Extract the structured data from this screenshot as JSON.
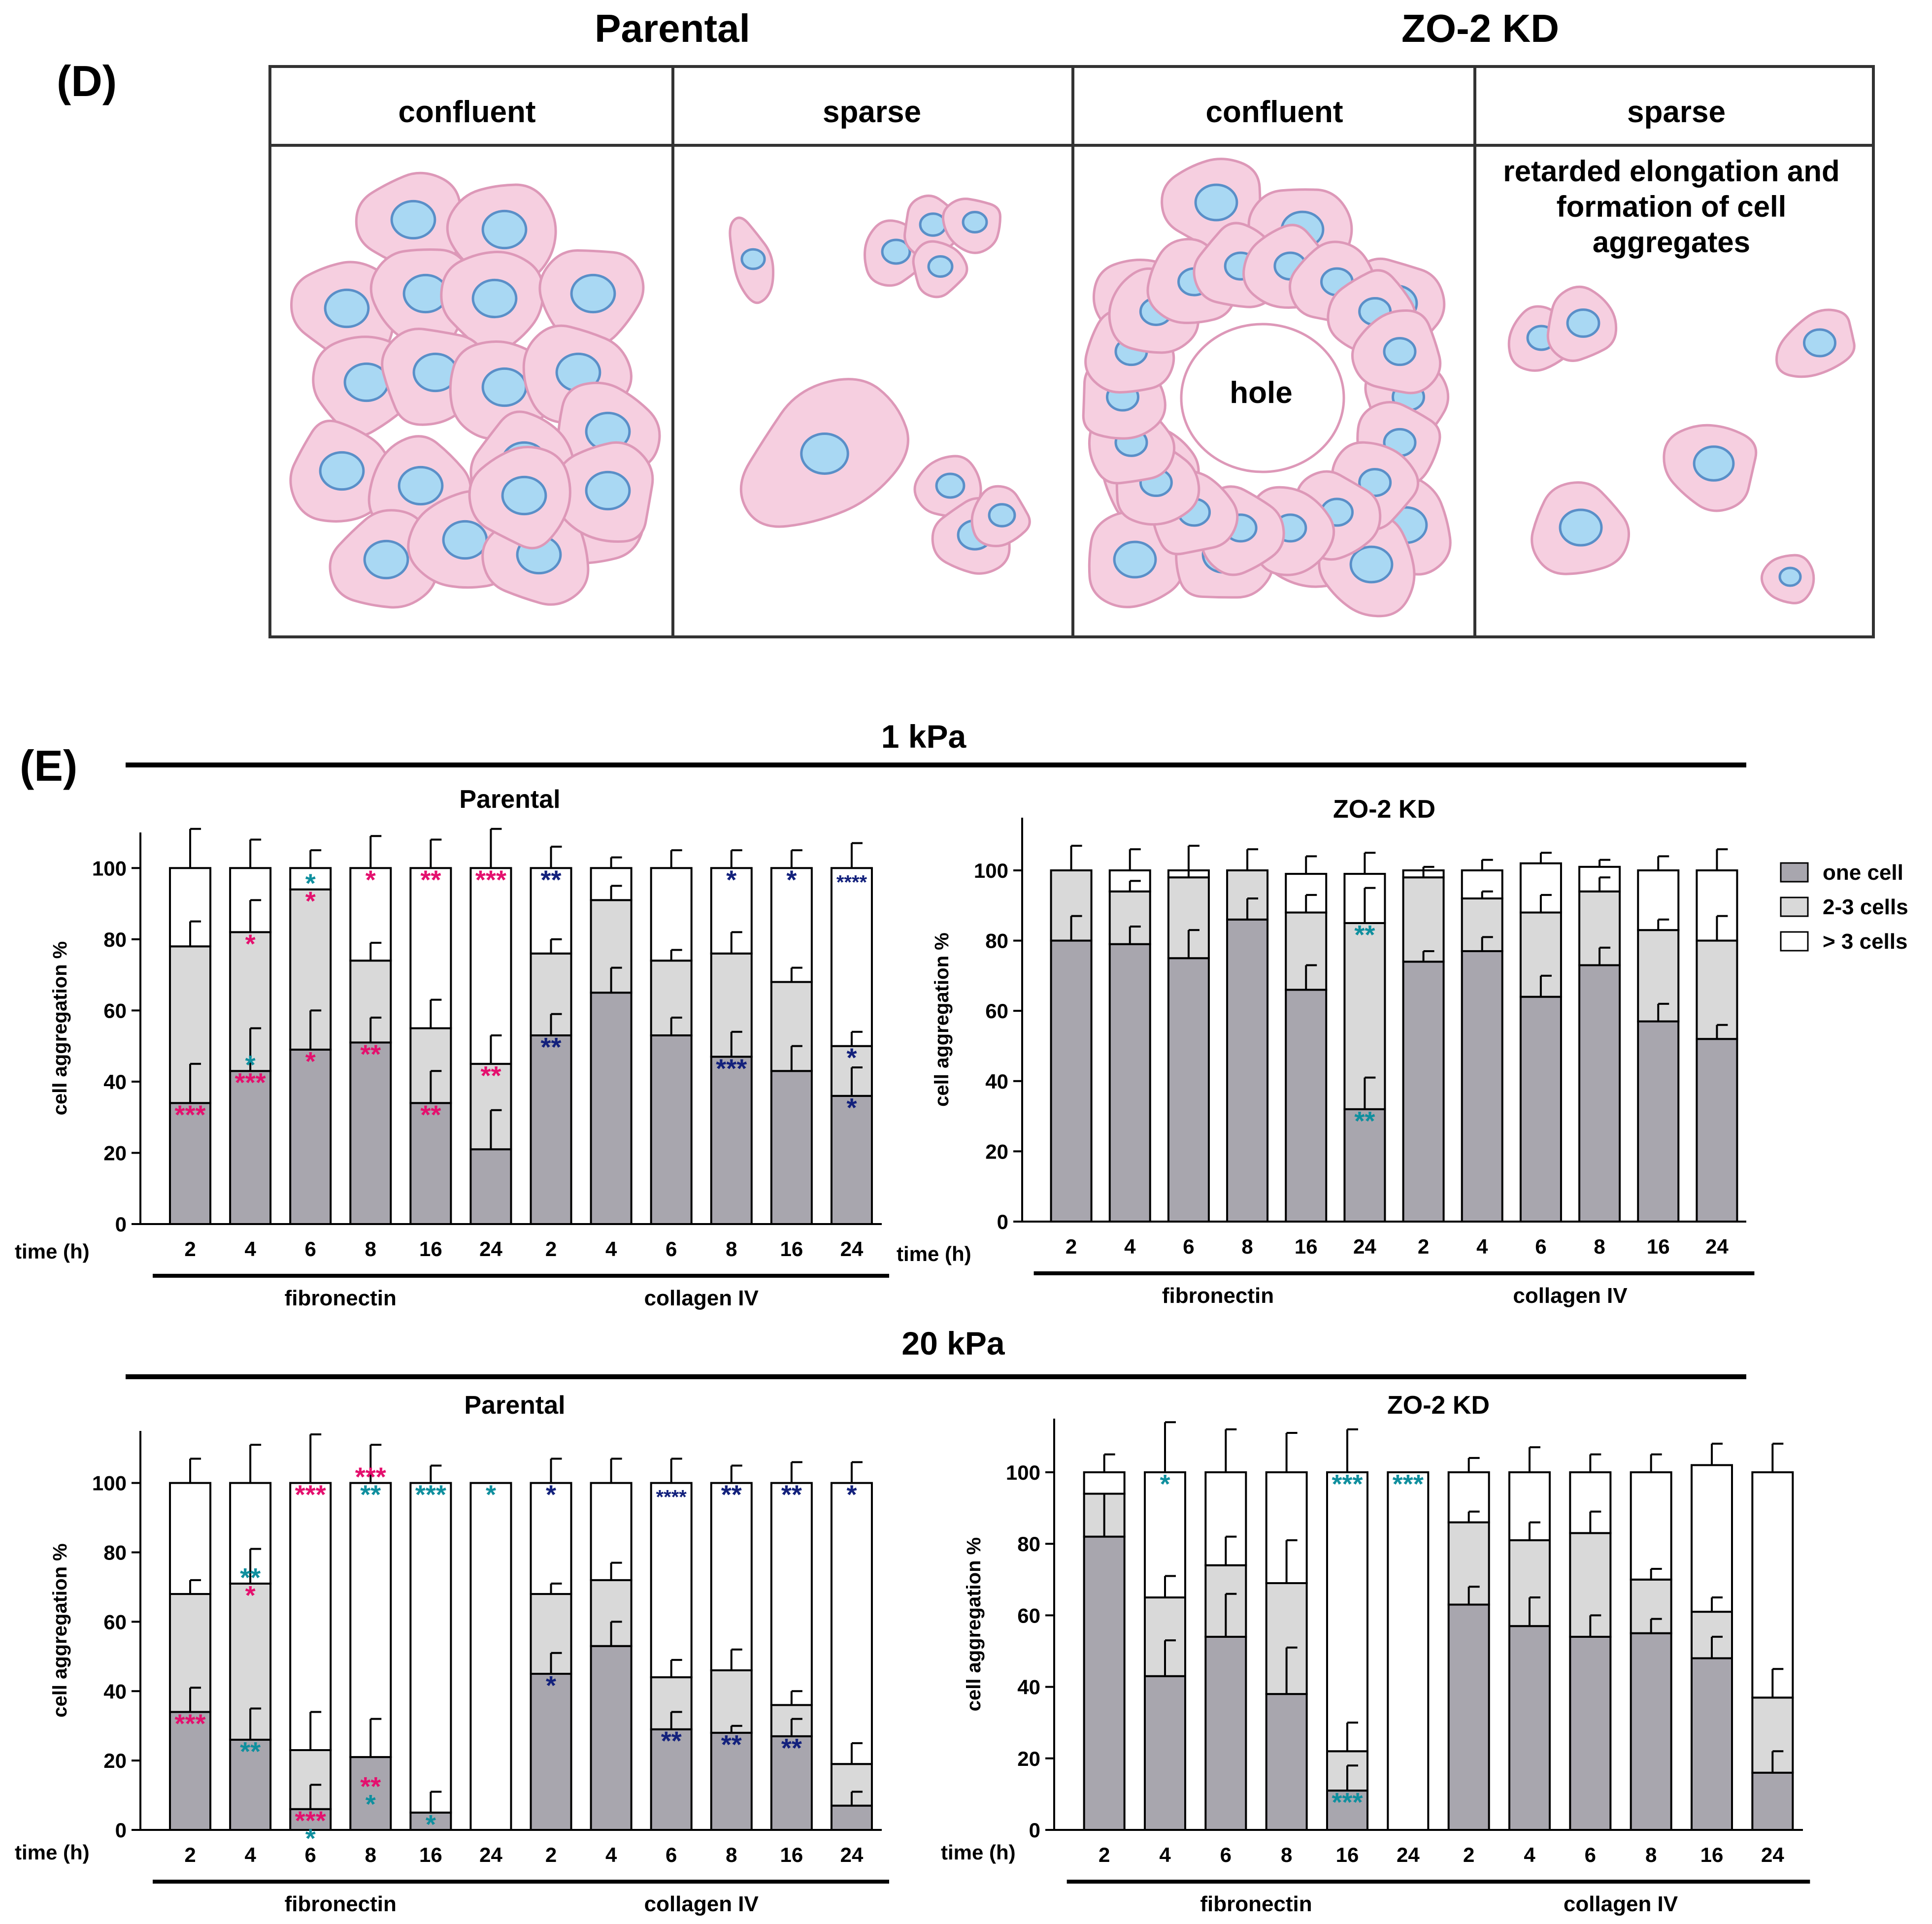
{
  "panel_d": {
    "label": "(D)",
    "group_parental": "Parental",
    "group_zo2kd": "ZO-2 KD",
    "columns": [
      "confluent",
      "sparse",
      "confluent",
      "sparse"
    ],
    "hole_label": "hole",
    "note_lines": [
      "retarded elongation and",
      "formation of cell",
      "aggregates"
    ],
    "colors": {
      "cell_fill": "#f6cfe0",
      "cell_stroke": "#dd98b8",
      "nucleus_fill": "#a9d8f3",
      "nucleus_stroke": "#5a8fc8"
    }
  },
  "panel_e": {
    "label": "(E)",
    "section_1kpa": "1 kPa",
    "section_20kpa": "20 kPa",
    "legend": [
      {
        "label": "one cell",
        "color": "#a8a6ae"
      },
      {
        "label": "2-3 cells",
        "color": "#d9d9d9"
      },
      {
        "label": "> 3 cells",
        "color": "#ffffff"
      }
    ],
    "star_colors": {
      "pink": "#e4106e",
      "teal": "#0f8f9e",
      "navy": "#13217c"
    }
  },
  "chart_data": [
    {
      "type": "bar",
      "stacked": true,
      "title": "Parental",
      "section": "1 kPa",
      "xlabel": "time (h)",
      "ylabel": "cell aggregation %",
      "ylim": [
        0,
        110
      ],
      "yticks": [
        0,
        20,
        40,
        60,
        80,
        100
      ],
      "categories": [
        "2",
        "4",
        "6",
        "8",
        "16",
        "24",
        "2",
        "4",
        "6",
        "8",
        "16",
        "24"
      ],
      "groups": [
        {
          "label": "fibronectin",
          "start": 0,
          "end": 5
        },
        {
          "label": "collagen IV",
          "start": 6,
          "end": 11
        }
      ],
      "series": [
        {
          "name": "one cell",
          "values": [
            34,
            43,
            49,
            51,
            34,
            21,
            53,
            65,
            53,
            47,
            43,
            36
          ]
        },
        {
          "name": "2-3 cells",
          "values": [
            44,
            39,
            45,
            23,
            21,
            24,
            23,
            26,
            21,
            29,
            25,
            14
          ]
        },
        {
          "name": "> 3 cells",
          "values": [
            22,
            18,
            6,
            26,
            45,
            55,
            24,
            9,
            26,
            24,
            32,
            50
          ]
        }
      ],
      "error_bars": {
        "one cell": [
          11,
          12,
          11,
          7,
          9,
          11,
          6,
          7,
          5,
          7,
          7,
          8
        ],
        "2-3 cells": [
          7,
          9,
          0,
          5,
          8,
          8,
          4,
          4,
          3,
          6,
          4,
          4
        ],
        "> 3 cells": [
          11,
          8,
          5,
          9,
          8,
          11,
          6,
          3,
          5,
          5,
          5,
          7
        ]
      },
      "annotations": [
        {
          "bar": 0,
          "level": "one cell",
          "text": "***",
          "color": "pink"
        },
        {
          "bar": 1,
          "level": "one cell",
          "text": "***",
          "color": "pink"
        },
        {
          "bar": 1,
          "level": "one cell",
          "text": "*",
          "color": "teal",
          "offset": 1
        },
        {
          "bar": 1,
          "level": "two",
          "text": "*",
          "color": "pink"
        },
        {
          "bar": 2,
          "level": "one cell",
          "text": "*",
          "color": "pink"
        },
        {
          "bar": 2,
          "level": "two",
          "text": "*",
          "color": "pink"
        },
        {
          "bar": 2,
          "level": "two",
          "text": "*",
          "color": "teal",
          "offset": 1
        },
        {
          "bar": 3,
          "level": "one cell",
          "text": "**",
          "color": "pink"
        },
        {
          "bar": 3,
          "level": "top",
          "text": "*",
          "color": "pink"
        },
        {
          "bar": 4,
          "level": "one cell",
          "text": "**",
          "color": "pink"
        },
        {
          "bar": 4,
          "level": "top",
          "text": "**",
          "color": "pink"
        },
        {
          "bar": 5,
          "level": "two",
          "text": "**",
          "color": "pink"
        },
        {
          "bar": 5,
          "level": "top",
          "text": "***",
          "color": "pink"
        },
        {
          "bar": 6,
          "level": "one cell",
          "text": "**",
          "color": "navy"
        },
        {
          "bar": 6,
          "level": "top",
          "text": "**",
          "color": "navy"
        },
        {
          "bar": 9,
          "level": "one cell",
          "text": "***",
          "color": "navy"
        },
        {
          "bar": 9,
          "level": "top",
          "text": "*",
          "color": "navy"
        },
        {
          "bar": 10,
          "level": "top",
          "text": "*",
          "color": "navy"
        },
        {
          "bar": 11,
          "level": "one cell",
          "text": "*",
          "color": "navy"
        },
        {
          "bar": 11,
          "level": "two",
          "text": "*",
          "color": "navy"
        },
        {
          "bar": 11,
          "level": "top",
          "text": "****",
          "color": "navy"
        }
      ]
    },
    {
      "type": "bar",
      "stacked": true,
      "title": "ZO-2 KD",
      "section": "1 kPa",
      "xlabel": "time (h)",
      "ylabel": "cell aggregation %",
      "ylim": [
        0,
        115
      ],
      "yticks": [
        0,
        20,
        40,
        60,
        80,
        100
      ],
      "categories": [
        "2",
        "4",
        "6",
        "8",
        "16",
        "24",
        "2",
        "4",
        "6",
        "8",
        "16",
        "24"
      ],
      "groups": [
        {
          "label": "fibronectin",
          "start": 0,
          "end": 5
        },
        {
          "label": "collagen IV",
          "start": 6,
          "end": 11
        }
      ],
      "series": [
        {
          "name": "one cell",
          "values": [
            80,
            79,
            75,
            86,
            66,
            32,
            74,
            77,
            64,
            73,
            57,
            52
          ]
        },
        {
          "name": "2-3 cells",
          "values": [
            20,
            15,
            23,
            14,
            22,
            53,
            24,
            15,
            24,
            21,
            26,
            28
          ]
        },
        {
          "name": "> 3 cells",
          "values": [
            0,
            6,
            2,
            0,
            11,
            14,
            2,
            8,
            14,
            7,
            17,
            20
          ]
        }
      ],
      "error_bars": {
        "one cell": [
          7,
          5,
          8,
          6,
          7,
          9,
          3,
          4,
          6,
          5,
          5,
          4
        ],
        "2-3 cells": [
          0,
          3,
          2,
          0,
          5,
          10,
          2,
          2,
          5,
          4,
          3,
          7
        ],
        "> 3 cells": [
          7,
          6,
          7,
          6,
          5,
          6,
          1,
          3,
          3,
          2,
          4,
          6
        ]
      },
      "annotations": [
        {
          "bar": 5,
          "level": "one cell",
          "text": "**",
          "color": "teal"
        },
        {
          "bar": 5,
          "level": "two",
          "text": "**",
          "color": "teal"
        }
      ]
    },
    {
      "type": "bar",
      "stacked": true,
      "title": "Parental",
      "section": "20 kPa",
      "xlabel": "time (h)",
      "ylabel": "cell aggregation %",
      "ylim": [
        0,
        115
      ],
      "yticks": [
        0,
        20,
        40,
        60,
        80,
        100
      ],
      "categories": [
        "2",
        "4",
        "6",
        "8",
        "16",
        "24",
        "2",
        "4",
        "6",
        "8",
        "16",
        "24"
      ],
      "groups": [
        {
          "label": "fibronectin",
          "start": 0,
          "end": 5
        },
        {
          "label": "collagen IV",
          "start": 6,
          "end": 11
        }
      ],
      "series": [
        {
          "name": "one cell",
          "values": [
            34,
            26,
            6,
            21,
            5,
            0,
            45,
            53,
            29,
            28,
            27,
            7
          ]
        },
        {
          "name": "2-3 cells",
          "values": [
            34,
            45,
            17,
            0,
            0,
            0,
            23,
            19,
            15,
            18,
            9,
            12
          ]
        },
        {
          "name": "> 3 cells",
          "values": [
            32,
            29,
            77,
            79,
            95,
            100,
            32,
            28,
            56,
            54,
            64,
            81
          ]
        }
      ],
      "error_bars": {
        "one cell": [
          7,
          9,
          7,
          11,
          6,
          0,
          6,
          7,
          5,
          2,
          5,
          4
        ],
        "2-3 cells": [
          4,
          10,
          11,
          0,
          0,
          0,
          3,
          5,
          5,
          6,
          4,
          6
        ],
        "> 3 cells": [
          7,
          11,
          14,
          11,
          5,
          0,
          7,
          7,
          7,
          5,
          6,
          6
        ]
      },
      "annotations": [
        {
          "bar": 0,
          "level": "one cell",
          "text": "***",
          "color": "pink"
        },
        {
          "bar": 1,
          "level": "one cell",
          "text": "**",
          "color": "teal"
        },
        {
          "bar": 1,
          "level": "two",
          "text": "*",
          "color": "pink"
        },
        {
          "bar": 1,
          "level": "two",
          "text": "**",
          "color": "teal",
          "offset": 1
        },
        {
          "bar": 2,
          "level": "one cell",
          "text": "***",
          "color": "pink"
        },
        {
          "bar": 2,
          "level": "one cell",
          "text": "*",
          "color": "teal",
          "offset": -1
        },
        {
          "bar": 2,
          "level": "top",
          "text": "***",
          "color": "pink"
        },
        {
          "bar": 3,
          "level": "one cell",
          "text": "*",
          "color": "teal",
          "offset": -2
        },
        {
          "bar": 3,
          "level": "one cell",
          "text": "**",
          "color": "pink",
          "offset": -1
        },
        {
          "bar": 3,
          "level": "top",
          "text": "**",
          "color": "teal"
        },
        {
          "bar": 3,
          "level": "top",
          "text": "***",
          "color": "pink",
          "offset": 1
        },
        {
          "bar": 4,
          "level": "one cell",
          "text": "*",
          "color": "teal"
        },
        {
          "bar": 4,
          "level": "top",
          "text": "***",
          "color": "teal"
        },
        {
          "bar": 5,
          "level": "top",
          "text": "*",
          "color": "teal"
        },
        {
          "bar": 6,
          "level": "one cell",
          "text": "*",
          "color": "navy"
        },
        {
          "bar": 6,
          "level": "top",
          "text": "*",
          "color": "navy"
        },
        {
          "bar": 8,
          "level": "one cell",
          "text": "**",
          "color": "navy"
        },
        {
          "bar": 8,
          "level": "top",
          "text": "****",
          "color": "navy"
        },
        {
          "bar": 9,
          "level": "one cell",
          "text": "**",
          "color": "navy"
        },
        {
          "bar": 9,
          "level": "top",
          "text": "**",
          "color": "navy"
        },
        {
          "bar": 10,
          "level": "one cell",
          "text": "**",
          "color": "navy"
        },
        {
          "bar": 10,
          "level": "top",
          "text": "**",
          "color": "navy"
        },
        {
          "bar": 11,
          "level": "top",
          "text": "*",
          "color": "navy"
        }
      ]
    },
    {
      "type": "bar",
      "stacked": true,
      "title": "ZO-2 KD",
      "section": "20 kPa",
      "xlabel": "time (h)",
      "ylabel": "cell aggregation %",
      "ylim": [
        0,
        115
      ],
      "yticks": [
        0,
        20,
        40,
        60,
        80,
        100
      ],
      "categories": [
        "2",
        "4",
        "6",
        "8",
        "16",
        "24",
        "2",
        "4",
        "6",
        "8",
        "16",
        "24"
      ],
      "groups": [
        {
          "label": "fibronectin",
          "start": 0,
          "end": 5
        },
        {
          "label": "collagen IV",
          "start": 6,
          "end": 11
        }
      ],
      "series": [
        {
          "name": "one cell",
          "values": [
            82,
            43,
            54,
            38,
            11,
            0,
            63,
            57,
            54,
            55,
            48,
            16
          ]
        },
        {
          "name": "2-3 cells",
          "values": [
            12,
            22,
            20,
            31,
            11,
            0,
            23,
            24,
            29,
            15,
            13,
            21
          ]
        },
        {
          "name": "> 3 cells",
          "values": [
            6,
            35,
            26,
            31,
            78,
            100,
            14,
            19,
            17,
            30,
            41,
            63
          ]
        }
      ],
      "error_bars": {
        "one cell": [
          12,
          10,
          12,
          13,
          7,
          0,
          5,
          8,
          6,
          4,
          6,
          6
        ],
        "2-3 cells": [
          0,
          6,
          8,
          12,
          8,
          0,
          3,
          5,
          6,
          3,
          4,
          8
        ],
        "> 3 cells": [
          5,
          14,
          12,
          11,
          12,
          0,
          4,
          7,
          5,
          5,
          6,
          8
        ]
      },
      "annotations": [
        {
          "bar": 1,
          "level": "top",
          "text": "*",
          "color": "teal"
        },
        {
          "bar": 4,
          "level": "one cell",
          "text": "***",
          "color": "teal"
        },
        {
          "bar": 4,
          "level": "top",
          "text": "***",
          "color": "teal"
        },
        {
          "bar": 5,
          "level": "top",
          "text": "***",
          "color": "teal"
        }
      ]
    }
  ]
}
